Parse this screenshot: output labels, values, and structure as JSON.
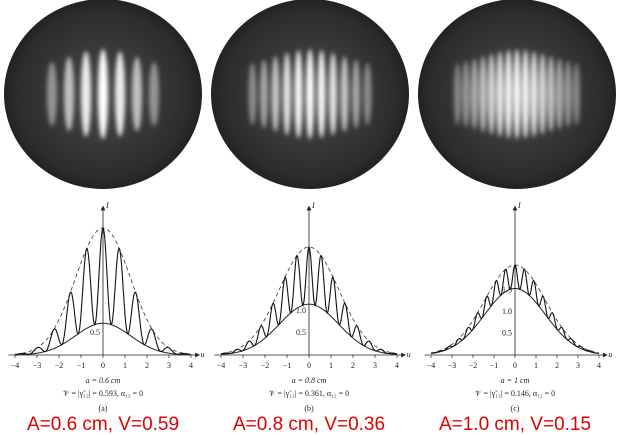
{
  "panels": [
    {
      "axis_y": "I",
      "axis_x": "u",
      "x_ticks": [
        "−4",
        "−3",
        "−2",
        "−1",
        "0",
        "1",
        "2",
        "3",
        "4"
      ],
      "y_ticks": [
        "0.5"
      ],
      "parameter": "a = 0.6 cm",
      "visibility": "𝒱 = |γ̃₁₂| = 0.593, α₁₂ = 0",
      "label": "(a)",
      "caption": "A=0.6 cm, V=0.59"
    },
    {
      "axis_y": "I",
      "axis_x": "u",
      "x_ticks": [
        "−4",
        "−3",
        "−2",
        "−1",
        "0",
        "1",
        "2",
        "3",
        "4"
      ],
      "y_ticks": [
        "0.5",
        "1.0"
      ],
      "parameter": "a = 0.8 cm",
      "visibility": "𝒱 = |γ̃₁₂| = 0.361, α₁₂ = 0",
      "label": "(b)",
      "caption": "A=0.8 cm, V=0.36"
    },
    {
      "axis_y": "I",
      "axis_x": "u",
      "x_ticks": [
        "−4",
        "−3",
        "−2",
        "−1",
        "0",
        "1",
        "2",
        "3",
        "4"
      ],
      "y_ticks": [
        "0.5",
        "1.0",
        "1.5"
      ],
      "parameter": "a = 1 cm",
      "visibility": "𝒱 = |γ̃₁₂| = 0.146, α₁₂ = 0",
      "label": "(c)",
      "caption": "A=1.0 cm, V=0.15"
    }
  ]
}
